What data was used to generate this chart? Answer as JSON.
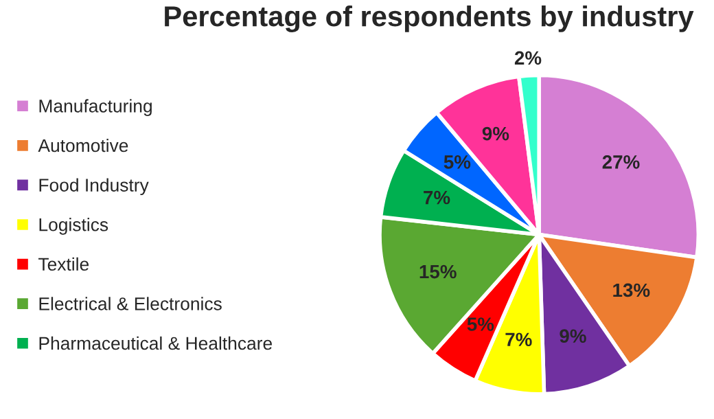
{
  "chart_data": {
    "type": "pie",
    "title": "Percentage of respondents by industry",
    "categories": [
      "Manufacturing",
      "Automotive",
      "Food Industry",
      "Logistics",
      "Textile",
      "Electrical & Electronics",
      "Pharmaceutical & Healthcare",
      null,
      null,
      null
    ],
    "values": [
      27,
      13,
      9,
      7,
      5,
      15,
      7,
      5,
      9,
      2
    ],
    "colors": [
      "#d57fd3",
      "#ed7d31",
      "#7030a0",
      "#ffff00",
      "#ff0000",
      "#5aa832",
      "#00b050",
      "#0066ff",
      "#ff3399",
      "#33ffcc"
    ],
    "value_labels": [
      "27%",
      "13%",
      "9%",
      "7%",
      "5%",
      "15%",
      "7%",
      "5%",
      "9%",
      "2%"
    ],
    "legend": "left"
  }
}
